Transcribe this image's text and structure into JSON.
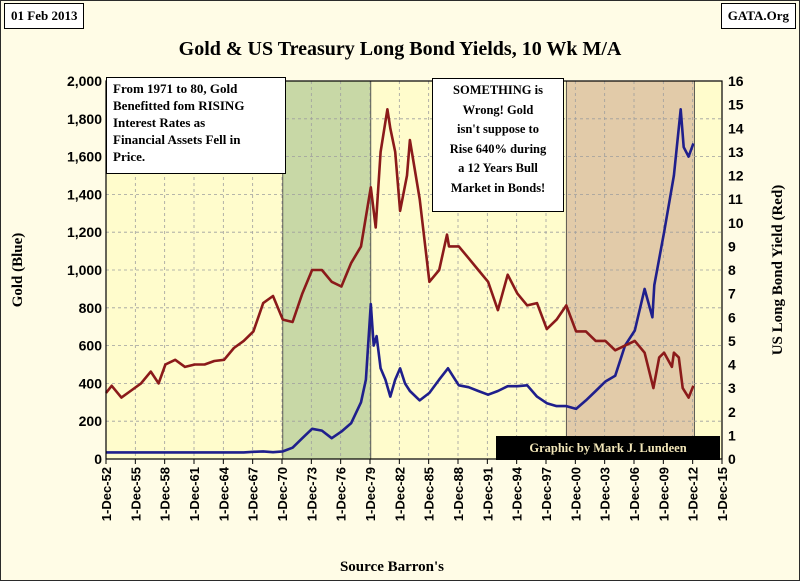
{
  "header": {
    "date": "01 Feb 2013",
    "source_tag": "GATA.Org"
  },
  "annotations": {
    "left_note": "From 1971 to 80, Gold\nBenefitted fom RISING\nInterest Rates as\nFinancial Assets  Fell in\nPrice.",
    "right_note": "SOMETHING is\nWrong!  Gold\nisn't suppose to\nRise 640% during\na 12 Years Bull\nMarket in Bonds!",
    "credit": "Graphic by Mark J. Lundeen"
  },
  "colors": {
    "plot_bg": "#fffccc",
    "shade_green": "#c8d8a6",
    "shade_brown": "#e2cba9",
    "gold_line": "#1f1f8c",
    "yield_line": "#8b1a1a",
    "grid": "#9e9e9e"
  },
  "chart_data": {
    "type": "line",
    "title": "Gold & US Treasury Long Bond Yields, 10 Wk M/A",
    "xlabel": "Source Barron's",
    "ylabel_left": "Gold (Blue)",
    "ylabel_right": "US Long Bond Yield (Red)",
    "ylim_left": [
      0,
      2000
    ],
    "ylim_right": [
      0,
      16
    ],
    "yticks_left": [
      "0",
      "200",
      "400",
      "600",
      "800",
      "1,000",
      "1,200",
      "1,400",
      "1,600",
      "1,800",
      "2,000"
    ],
    "yticks_right": [
      "0",
      "1",
      "2",
      "3",
      "4",
      "5",
      "6",
      "7",
      "8",
      "9",
      "10",
      "11",
      "12",
      "13",
      "14",
      "15",
      "16"
    ],
    "xticks": [
      "1-Dec-52",
      "1-Dec-55",
      "1-Dec-58",
      "1-Dec-61",
      "1-Dec-64",
      "1-Dec-67",
      "1-Dec-70",
      "1-Dec-73",
      "1-Dec-76",
      "1-Dec-79",
      "1-Dec-82",
      "1-Dec-85",
      "1-Dec-88",
      "1-Dec-91",
      "1-Dec-94",
      "1-Dec-97",
      "1-Dec-00",
      "1-Dec-03",
      "1-Dec-06",
      "1-Dec-09",
      "1-Dec-12",
      "1-Dec-15"
    ],
    "xrange": [
      1952.92,
      2015.92
    ],
    "grid": true,
    "shaded_periods": [
      {
        "from": 1971.0,
        "to": 1980.0,
        "fill": "green"
      },
      {
        "from": 2000.0,
        "to": 2013.1,
        "fill": "brown"
      }
    ],
    "series": [
      {
        "name": "Gold (Blue)",
        "axis": "left",
        "points": [
          [
            1952.92,
            35
          ],
          [
            1960,
            35
          ],
          [
            1967,
            35
          ],
          [
            1968,
            38
          ],
          [
            1969,
            40
          ],
          [
            1970,
            36
          ],
          [
            1971,
            40
          ],
          [
            1972,
            60
          ],
          [
            1973,
            110
          ],
          [
            1974,
            160
          ],
          [
            1975,
            150
          ],
          [
            1976,
            110
          ],
          [
            1977,
            145
          ],
          [
            1978,
            190
          ],
          [
            1979,
            300
          ],
          [
            1979.5,
            420
          ],
          [
            1980.0,
            820
          ],
          [
            1980.3,
            600
          ],
          [
            1980.6,
            650
          ],
          [
            1981,
            480
          ],
          [
            1981.5,
            420
          ],
          [
            1982,
            330
          ],
          [
            1982.5,
            420
          ],
          [
            1983,
            480
          ],
          [
            1983.5,
            400
          ],
          [
            1984,
            360
          ],
          [
            1985,
            310
          ],
          [
            1986,
            350
          ],
          [
            1987,
            420
          ],
          [
            1987.9,
            480
          ],
          [
            1988.5,
            430
          ],
          [
            1989,
            390
          ],
          [
            1990,
            380
          ],
          [
            1991,
            360
          ],
          [
            1992,
            340
          ],
          [
            1993,
            360
          ],
          [
            1994,
            385
          ],
          [
            1995,
            385
          ],
          [
            1996,
            390
          ],
          [
            1997,
            330
          ],
          [
            1998,
            295
          ],
          [
            1999,
            280
          ],
          [
            2000,
            280
          ],
          [
            2001,
            265
          ],
          [
            2002,
            310
          ],
          [
            2003,
            360
          ],
          [
            2004,
            410
          ],
          [
            2005,
            440
          ],
          [
            2006,
            600
          ],
          [
            2007,
            680
          ],
          [
            2008,
            900
          ],
          [
            2008.8,
            750
          ],
          [
            2009,
            920
          ],
          [
            2010,
            1200
          ],
          [
            2011,
            1500
          ],
          [
            2011.7,
            1850
          ],
          [
            2012,
            1650
          ],
          [
            2012.5,
            1600
          ],
          [
            2013.0,
            1670
          ]
        ]
      },
      {
        "name": "US Long Bond Yield (Red)",
        "axis": "right",
        "points": [
          [
            1952.92,
            2.8
          ],
          [
            1953.5,
            3.1
          ],
          [
            1954.5,
            2.6
          ],
          [
            1955.5,
            2.9
          ],
          [
            1956.5,
            3.2
          ],
          [
            1957.5,
            3.7
          ],
          [
            1958.3,
            3.2
          ],
          [
            1959,
            4.0
          ],
          [
            1960,
            4.2
          ],
          [
            1961,
            3.9
          ],
          [
            1962,
            4.0
          ],
          [
            1963,
            4.0
          ],
          [
            1964,
            4.15
          ],
          [
            1965,
            4.2
          ],
          [
            1966,
            4.7
          ],
          [
            1967,
            5.0
          ],
          [
            1968,
            5.4
          ],
          [
            1969,
            6.6
          ],
          [
            1970,
            6.9
          ],
          [
            1971,
            5.9
          ],
          [
            1972,
            5.8
          ],
          [
            1973,
            7.0
          ],
          [
            1974,
            8.0
          ],
          [
            1975,
            8.0
          ],
          [
            1976,
            7.5
          ],
          [
            1977,
            7.3
          ],
          [
            1978,
            8.3
          ],
          [
            1979,
            9.0
          ],
          [
            1980,
            11.5
          ],
          [
            1980.5,
            9.8
          ],
          [
            1981,
            13.0
          ],
          [
            1981.7,
            14.8
          ],
          [
            1982,
            14.0
          ],
          [
            1982.5,
            13.0
          ],
          [
            1983,
            10.5
          ],
          [
            1983.7,
            12.0
          ],
          [
            1984,
            13.5
          ],
          [
            1985,
            11.0
          ],
          [
            1986,
            7.5
          ],
          [
            1987,
            8.0
          ],
          [
            1987.8,
            9.5
          ],
          [
            1988,
            9.0
          ],
          [
            1989,
            9.0
          ],
          [
            1990,
            8.5
          ],
          [
            1991,
            8.0
          ],
          [
            1992,
            7.5
          ],
          [
            1993,
            6.3
          ],
          [
            1994,
            7.8
          ],
          [
            1995,
            7.0
          ],
          [
            1996,
            6.5
          ],
          [
            1997,
            6.6
          ],
          [
            1998,
            5.5
          ],
          [
            1999,
            5.9
          ],
          [
            2000,
            6.5
          ],
          [
            2001,
            5.4
          ],
          [
            2002,
            5.4
          ],
          [
            2003,
            5.0
          ],
          [
            2004,
            5.0
          ],
          [
            2005,
            4.6
          ],
          [
            2006,
            4.8
          ],
          [
            2007,
            5.0
          ],
          [
            2008,
            4.5
          ],
          [
            2008.9,
            3.0
          ],
          [
            2009.5,
            4.3
          ],
          [
            2010,
            4.5
          ],
          [
            2010.8,
            3.9
          ],
          [
            2011,
            4.5
          ],
          [
            2011.5,
            4.3
          ],
          [
            2011.9,
            3.0
          ],
          [
            2012.5,
            2.6
          ],
          [
            2013.0,
            3.1
          ]
        ]
      }
    ]
  }
}
